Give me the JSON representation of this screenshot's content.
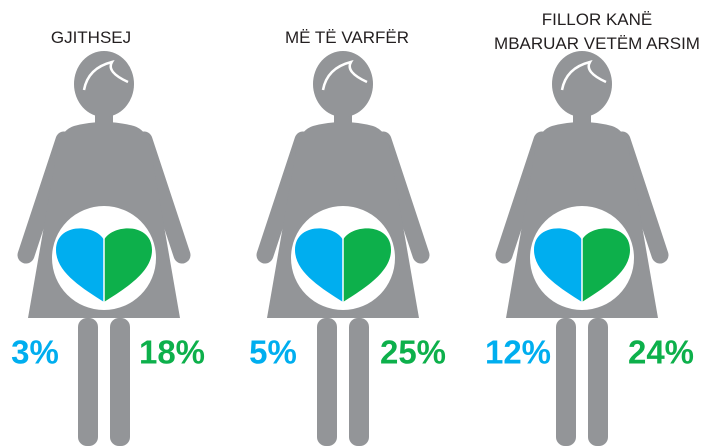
{
  "panels": [
    {
      "title": [
        "GJITHSEJ"
      ],
      "left": "3%",
      "right": "18%"
    },
    {
      "title": [
        "MË TË VARFËR"
      ],
      "left": "5%",
      "right": "25%"
    },
    {
      "title": [
        "FILLOR KANË",
        "MBARUAR VETËM ARSIM"
      ],
      "left": "12%",
      "right": "24%"
    }
  ]
}
